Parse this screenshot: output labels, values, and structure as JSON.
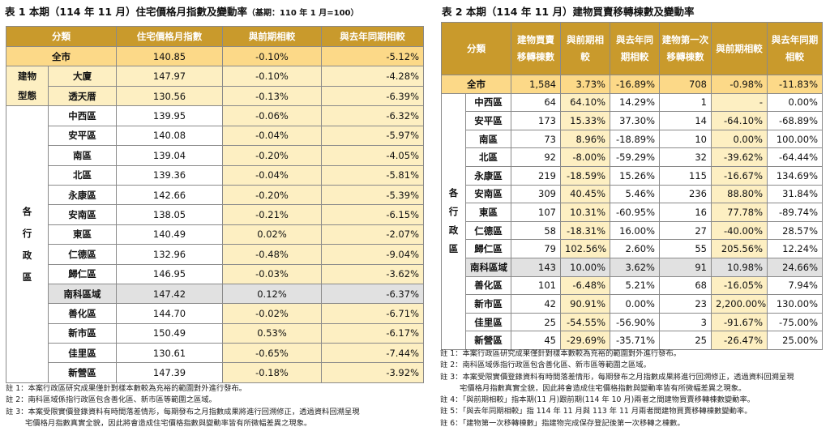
{
  "table1": {
    "title": "表 1 本期（114 年 11 月）住宅價格月指數及變動率",
    "subtitle": "（基期：110 年 1 月=100）",
    "headers": [
      "分類",
      "住宅價格月指數",
      "與前期相較",
      "與去年同期相較"
    ],
    "total": {
      "name": "全市",
      "index": "140.85",
      "prev": "-0.10%",
      "yoy": "-5.12%"
    },
    "type_group_label": "建物型態",
    "types": [
      {
        "name": "大廈",
        "index": "147.97",
        "prev": "-0.10%",
        "yoy": "-4.28%"
      },
      {
        "name": "透天厝",
        "index": "130.56",
        "prev": "-0.13%",
        "yoy": "-6.39%"
      }
    ],
    "district_group_label": "各行政區",
    "districts": [
      {
        "name": "中西區",
        "index": "139.95",
        "prev": "-0.06%",
        "yoy": "-6.32%"
      },
      {
        "name": "安平區",
        "index": "140.08",
        "prev": "-0.04%",
        "yoy": "-5.97%"
      },
      {
        "name": "南區",
        "index": "139.04",
        "prev": "-0.20%",
        "yoy": "-4.05%"
      },
      {
        "name": "北區",
        "index": "139.36",
        "prev": "-0.04%",
        "yoy": "-5.81%"
      },
      {
        "name": "永康區",
        "index": "142.66",
        "prev": "-0.20%",
        "yoy": "-5.39%"
      },
      {
        "name": "安南區",
        "index": "138.05",
        "prev": "-0.21%",
        "yoy": "-6.15%"
      },
      {
        "name": "東區",
        "index": "140.49",
        "prev": "0.02%",
        "yoy": "-2.07%"
      },
      {
        "name": "仁德區",
        "index": "132.96",
        "prev": "-0.48%",
        "yoy": "-9.04%"
      },
      {
        "name": "歸仁區",
        "index": "146.95",
        "prev": "-0.03%",
        "yoy": "-3.62%"
      },
      {
        "name": "南科區域",
        "index": "147.42",
        "prev": "0.12%",
        "yoy": "-6.37%"
      },
      {
        "name": "善化區",
        "index": "144.70",
        "prev": "-0.02%",
        "yoy": "-6.71%"
      },
      {
        "name": "新市區",
        "index": "150.49",
        "prev": "0.53%",
        "yoy": "-6.17%"
      },
      {
        "name": "佳里區",
        "index": "130.61",
        "prev": "-0.65%",
        "yoy": "-7.44%"
      },
      {
        "name": "新營區",
        "index": "147.39",
        "prev": "-0.18%",
        "yoy": "-3.92%"
      }
    ],
    "notes": [
      {
        "n": "註 1：本案行政區研究成果僅針對樣本數較為充裕的範圍對外進行發布。"
      },
      {
        "n": "註 2：南科區域係指行政區包含善化區、新市區等範圍之區域。"
      },
      {
        "n": "註 3：本案受限實價登錄資料有時間落差情形，每期發布之月指數成果將進行回溯修正，透過資料回溯呈現",
        "c": "宅價格月指數真實全貌，因此將會造成住宅價格指數與變動率皆有所微幅差異之現象。"
      }
    ]
  },
  "table2": {
    "title": "表 2 本期（114 年 11 月）建物買賣移轉棟數及變動率",
    "headers": [
      "分類",
      "建物買賣移轉棟數",
      "與前期相較",
      "與去年同期相較",
      "建物第一次移轉棟數",
      "與前期相較",
      "與去年同期相較"
    ],
    "total": {
      "name": "全市",
      "count": "1,584",
      "prev": "3.73%",
      "yoy": "-16.89%",
      "first": "708",
      "fprev": "-0.98%",
      "fyoy": "-11.83%"
    },
    "group_label": "各行政區",
    "rows": [
      {
        "name": "中西區",
        "count": "64",
        "prev": "64.10%",
        "yoy": "14.29%",
        "first": "1",
        "fprev": "-",
        "fyoy": "0.00%"
      },
      {
        "name": "安平區",
        "count": "173",
        "prev": "15.33%",
        "yoy": "37.30%",
        "first": "14",
        "fprev": "-64.10%",
        "fyoy": "-68.89%"
      },
      {
        "name": "南區",
        "count": "73",
        "prev": "8.96%",
        "yoy": "-18.89%",
        "first": "10",
        "fprev": "0.00%",
        "fyoy": "100.00%"
      },
      {
        "name": "北區",
        "count": "92",
        "prev": "-8.00%",
        "yoy": "-59.29%",
        "first": "32",
        "fprev": "-39.62%",
        "fyoy": "-64.44%"
      },
      {
        "name": "永康區",
        "count": "219",
        "prev": "-18.59%",
        "yoy": "15.26%",
        "first": "115",
        "fprev": "-16.67%",
        "fyoy": "134.69%"
      },
      {
        "name": "安南區",
        "count": "309",
        "prev": "40.45%",
        "yoy": "5.46%",
        "first": "236",
        "fprev": "88.80%",
        "fyoy": "31.84%"
      },
      {
        "name": "東區",
        "count": "107",
        "prev": "10.31%",
        "yoy": "-60.95%",
        "first": "16",
        "fprev": "77.78%",
        "fyoy": "-89.74%"
      },
      {
        "name": "仁德區",
        "count": "58",
        "prev": "-18.31%",
        "yoy": "16.00%",
        "first": "27",
        "fprev": "-40.00%",
        "fyoy": "28.57%"
      },
      {
        "name": "歸仁區",
        "count": "79",
        "prev": "102.56%",
        "yoy": "2.60%",
        "first": "55",
        "fprev": "205.56%",
        "fyoy": "12.24%"
      },
      {
        "name": "南科區域",
        "count": "143",
        "prev": "10.00%",
        "yoy": "3.62%",
        "first": "91",
        "fprev": "10.98%",
        "fyoy": "24.66%"
      },
      {
        "name": "善化區",
        "count": "101",
        "prev": "-6.48%",
        "yoy": "5.21%",
        "first": "68",
        "fprev": "-16.05%",
        "fyoy": "7.94%"
      },
      {
        "name": "新市區",
        "count": "42",
        "prev": "90.91%",
        "yoy": "0.00%",
        "first": "23",
        "fprev": "2,200.00%",
        "fyoy": "130.00%"
      },
      {
        "name": "佳里區",
        "count": "25",
        "prev": "-54.55%",
        "yoy": "-56.90%",
        "first": "3",
        "fprev": "-91.67%",
        "fyoy": "-75.00%"
      },
      {
        "name": "新營區",
        "count": "45",
        "prev": "-29.69%",
        "yoy": "-35.71%",
        "first": "25",
        "fprev": "-26.47%",
        "fyoy": "25.00%"
      }
    ],
    "notes": [
      {
        "n": "註 1：本案行政區研究成果僅針對樣本數較為充裕的範圍對外進行發布。"
      },
      {
        "n": "註 2：南科區域係指行政區包含善化區、新市區等範圍之區域。"
      },
      {
        "n": "註 3：本案受限實價登錄資料有時間落差情形，每期發布之月指數成果將進行回溯修正，透過資料回溯呈現",
        "c": "宅價格月指數真實全貌，因此將會造成住宅價格指數與變動率皆有所微幅差異之現象。"
      },
      {
        "n": "註 4：「與前期相較」指本期(11 月)跟前期(114 年 10 月)兩者之間建物買賣移轉棟數變動率。"
      },
      {
        "n": "註 5：「與去年同期相較」指 114 年 11 月與 113 年 11 月兩者間建物買賣移轉棟數變動率。"
      },
      {
        "n": "註 6：「建物第一次移轉棟數」指建物完成保存登記後第一次移轉之棟數。"
      }
    ]
  },
  "colors": {
    "header": "#c99a2c",
    "total_row": "#fcd988",
    "light_cell": "#fdefc2",
    "highlight_row": "#e1e1e1"
  }
}
